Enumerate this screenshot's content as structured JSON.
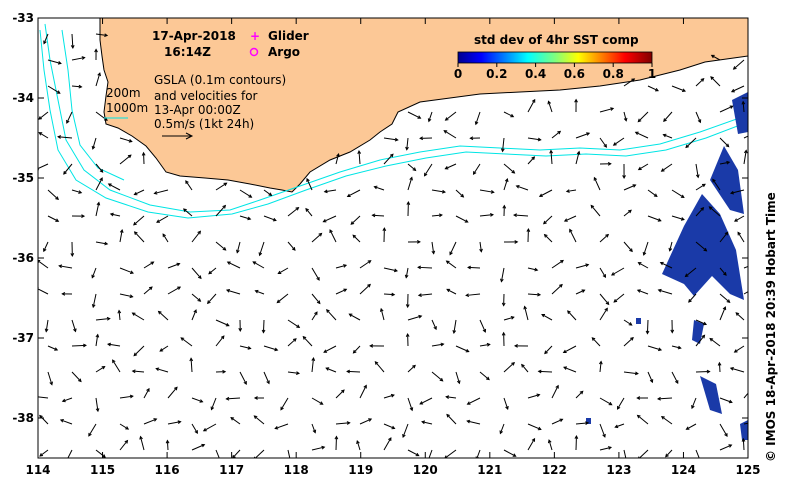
{
  "title": {
    "date": "17-Apr-2018",
    "time": "16:14Z"
  },
  "legend_items": [
    {
      "label": "Glider",
      "marker": "+",
      "color": "#ff00ff"
    },
    {
      "label": "Argo",
      "marker": "o",
      "color": "#ff00ff"
    }
  ],
  "contour_labels": [
    "200m",
    "1000m"
  ],
  "info_lines": [
    "GSLA (0.1m contours)",
    "and velocities for",
    "13-Apr 00:00Z",
    "0.5m/s (1kt 24h)"
  ],
  "colorbar": {
    "title": "std dev of 4hr SST comp",
    "ticks": [
      "0",
      "0.2",
      "0.4",
      "0.6",
      "0.8",
      "1"
    ]
  },
  "x_ticks": [
    "114",
    "115",
    "116",
    "117",
    "118",
    "119",
    "120",
    "121",
    "122",
    "123",
    "124",
    "125"
  ],
  "y_ticks": [
    "-33",
    "-34",
    "-35",
    "-36",
    "-37",
    "-38"
  ],
  "credit": "© IMOS 18-Apr-2018 20:39 Hobart Time",
  "colors": {
    "land": "#fcc896",
    "isobath": "#00e5e5",
    "sst_patch": "#1a3aa8",
    "marker": "#ff00ff"
  }
}
